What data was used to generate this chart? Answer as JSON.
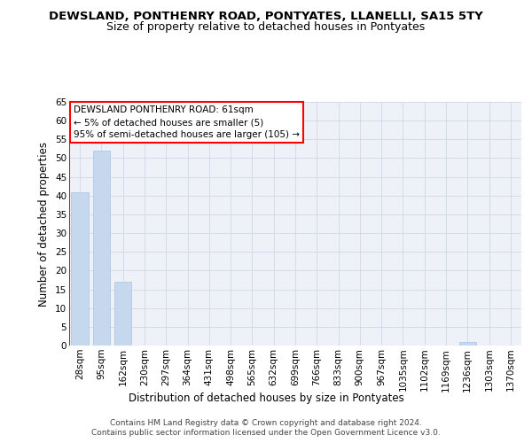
{
  "title": "DEWSLAND, PONTHENRY ROAD, PONTYATES, LLANELLI, SA15 5TY",
  "subtitle": "Size of property relative to detached houses in Pontyates",
  "xlabel": "Distribution of detached houses by size in Pontyates",
  "ylabel": "Number of detached properties",
  "categories": [
    "28sqm",
    "95sqm",
    "162sqm",
    "230sqm",
    "297sqm",
    "364sqm",
    "431sqm",
    "498sqm",
    "565sqm",
    "632sqm",
    "699sqm",
    "766sqm",
    "833sqm",
    "900sqm",
    "967sqm",
    "1035sqm",
    "1102sqm",
    "1169sqm",
    "1236sqm",
    "1303sqm",
    "1370sqm"
  ],
  "values": [
    41,
    52,
    17,
    0,
    0,
    0,
    0,
    0,
    0,
    0,
    0,
    0,
    0,
    0,
    0,
    0,
    0,
    0,
    1,
    0,
    0
  ],
  "bar_color": "#c5d8ed",
  "bar_edge_color": "#a8c4de",
  "ylim": [
    0,
    65
  ],
  "yticks": [
    0,
    5,
    10,
    15,
    20,
    25,
    30,
    35,
    40,
    45,
    50,
    55,
    60,
    65
  ],
  "vline_color": "red",
  "annotation_title": "DEWSLAND PONTHENRY ROAD: 61sqm",
  "annotation_line1": "← 5% of detached houses are smaller (5)",
  "annotation_line2": "95% of semi-detached houses are larger (105) →",
  "footer_line1": "Contains HM Land Registry data © Crown copyright and database right 2024.",
  "footer_line2": "Contains public sector information licensed under the Open Government Licence v3.0.",
  "bg_color": "#eef2f8",
  "grid_color": "#d0d8e8",
  "title_fontsize": 9.5,
  "subtitle_fontsize": 9,
  "axis_label_fontsize": 8.5,
  "tick_fontsize": 7.5,
  "annotation_fontsize": 7.5,
  "footer_fontsize": 6.5
}
